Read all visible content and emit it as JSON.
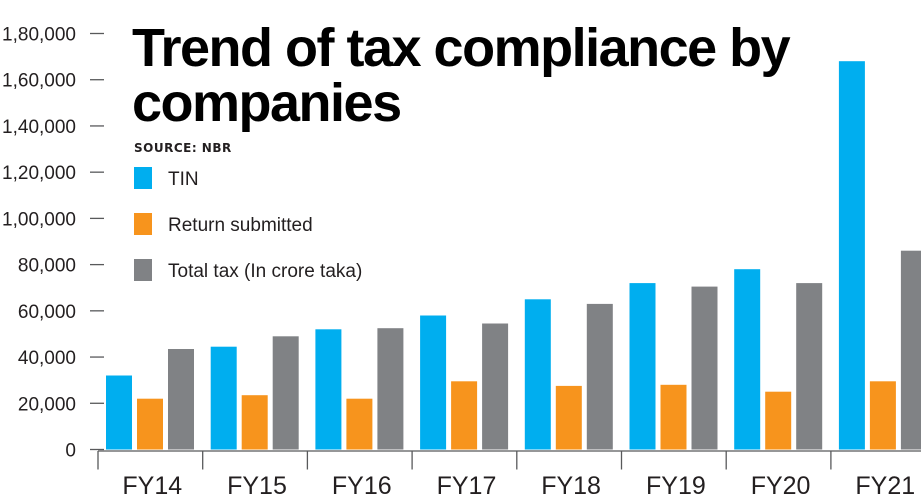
{
  "chart_data": {
    "type": "bar",
    "title": "Trend of tax compliance by companies",
    "title_lines": [
      "Trend of tax compliance by",
      "companies"
    ],
    "source": "SOURCE: NBR",
    "categories": [
      "FY14",
      "FY15",
      "FY16",
      "FY17",
      "FY18",
      "FY19",
      "FY20",
      "FY21"
    ],
    "series": [
      {
        "name": "TIN",
        "color": "#00aeef",
        "values": [
          32000,
          44500,
          52000,
          58000,
          65000,
          72000,
          78000,
          168000
        ]
      },
      {
        "name": "Return submitted",
        "color": "#f7941d",
        "values": [
          22000,
          23500,
          22000,
          29500,
          27500,
          28000,
          25000,
          29500
        ]
      },
      {
        "name": "Total tax (In crore taka)",
        "color": "#808285",
        "values": [
          43500,
          49000,
          52500,
          54500,
          63000,
          70500,
          72000,
          86000
        ]
      }
    ],
    "y_ticks": [
      "0",
      "20,000",
      "40,000",
      "60,000",
      "80,000",
      "1,00,000",
      "1,20,000",
      "1,40,000",
      "1,60,000",
      "1,80,000"
    ],
    "ylim": [
      0,
      180000
    ],
    "xlabel": "",
    "ylabel": "",
    "grid": false,
    "legend_position": "top-left"
  }
}
